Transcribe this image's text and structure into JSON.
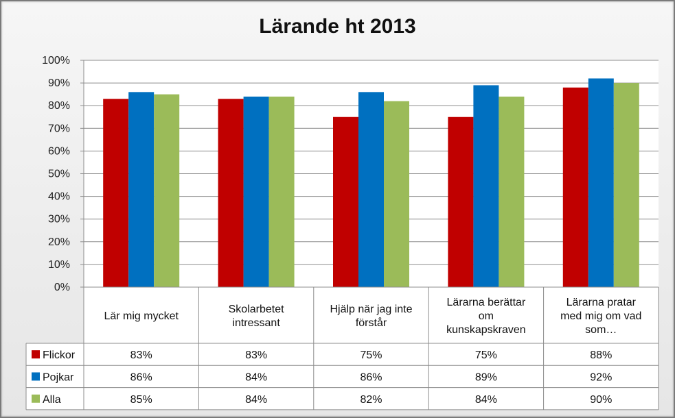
{
  "chart_data": {
    "type": "bar",
    "title": "Lärande ht 2013",
    "categories": [
      "Lär mig  mycket",
      "Skolarbetet intressant",
      "Hjälp när jag inte förstår",
      "Lärarna berättar om kunskapskraven",
      "Lärarna pratar med mig om vad som…"
    ],
    "category_lines": [
      [
        "Lär mig  mycket"
      ],
      [
        "Skolarbetet",
        "intressant"
      ],
      [
        "Hjälp när jag inte",
        "förstår"
      ],
      [
        "Lärarna berättar",
        "om",
        "kunskapskraven"
      ],
      [
        "Lärarna pratar",
        "med mig om vad",
        "som…"
      ]
    ],
    "series": [
      {
        "name": "Flickor",
        "color": "#C00000",
        "values": [
          83,
          83,
          75,
          75,
          88
        ],
        "labels": [
          "83%",
          "83%",
          "75%",
          "75%",
          "88%"
        ]
      },
      {
        "name": "Pojkar",
        "color": "#0070C0",
        "values": [
          86,
          84,
          86,
          89,
          92
        ],
        "labels": [
          "86%",
          "84%",
          "86%",
          "89%",
          "92%"
        ]
      },
      {
        "name": "Alla",
        "color": "#9BBB59",
        "values": [
          85,
          84,
          82,
          84,
          90
        ],
        "labels": [
          "85%",
          "84%",
          "82%",
          "84%",
          "90%"
        ]
      }
    ],
    "ylim": [
      0,
      100
    ],
    "yticks": [
      0,
      10,
      20,
      30,
      40,
      50,
      60,
      70,
      80,
      90,
      100
    ],
    "ytick_labels": [
      "0%",
      "10%",
      "20%",
      "30%",
      "40%",
      "50%",
      "60%",
      "70%",
      "80%",
      "90%",
      "100%"
    ],
    "grid": true,
    "legend": "data-table"
  }
}
